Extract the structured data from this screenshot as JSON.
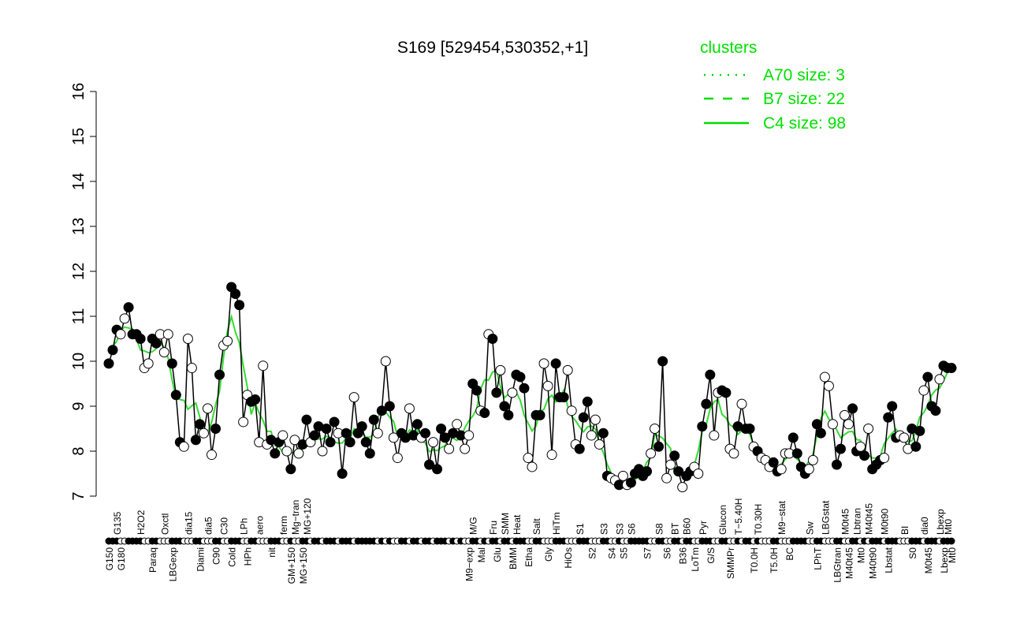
{
  "chart_data": {
    "type": "line",
    "title": "S169 [529454,530352,+1]",
    "xlabel": "",
    "ylabel": "",
    "ylim": [
      7,
      16
    ],
    "yticks": [
      7,
      8,
      9,
      10,
      11,
      12,
      13,
      14,
      15,
      16
    ],
    "legend": {
      "title": "clusters",
      "placement": "top-right",
      "color": "#00dd00",
      "entries": [
        {
          "label": "A70 size: 3",
          "style": "dotted"
        },
        {
          "label": "B7 size: 22",
          "style": "dashed"
        },
        {
          "label": "C4 size: 98",
          "style": "solid"
        }
      ]
    },
    "points": [
      [
        "G150",
        9.95,
        1
      ],
      [
        "",
        10.25,
        1
      ],
      [
        "G135",
        10.7,
        1
      ],
      [
        "G180",
        10.6,
        0
      ],
      [
        "",
        10.95,
        0
      ],
      [
        "",
        11.2,
        1
      ],
      [
        "",
        10.6,
        1
      ],
      [
        "",
        10.6,
        1
      ],
      [
        "H2O2",
        10.5,
        1
      ],
      [
        "",
        9.85,
        0
      ],
      [
        "",
        9.95,
        0
      ],
      [
        "Paraq",
        10.5,
        1
      ],
      [
        "",
        10.4,
        1
      ],
      [
        "",
        10.6,
        0
      ],
      [
        "Oxctl",
        10.2,
        0
      ],
      [
        "",
        10.6,
        0
      ],
      [
        "LBGexp",
        9.95,
        1
      ],
      [
        "",
        9.25,
        1
      ],
      [
        "",
        8.2,
        1
      ],
      [
        "",
        8.1,
        0
      ],
      [
        "dia15",
        10.5,
        0
      ],
      [
        "",
        9.85,
        0
      ],
      [
        "",
        8.25,
        1
      ],
      [
        "Diami",
        8.6,
        1
      ],
      [
        "",
        8.4,
        0
      ],
      [
        "dia5",
        8.95,
        0
      ],
      [
        "",
        7.92,
        0
      ],
      [
        "C90",
        8.5,
        1
      ],
      [
        "",
        9.7,
        1
      ],
      [
        "C30",
        10.35,
        0
      ],
      [
        "",
        10.45,
        0
      ],
      [
        "Cold",
        11.65,
        1
      ],
      [
        "",
        11.5,
        1
      ],
      [
        "",
        11.25,
        1
      ],
      [
        "LPh",
        8.65,
        0
      ],
      [
        "HPh",
        9.25,
        0
      ],
      [
        "",
        9.1,
        1
      ],
      [
        "",
        9.15,
        1
      ],
      [
        "aero",
        8.2,
        0
      ],
      [
        "",
        9.9,
        0
      ],
      [
        "",
        8.15,
        0
      ],
      [
        "nit",
        8.25,
        1
      ],
      [
        "",
        7.95,
        1
      ],
      [
        "",
        8.2,
        1
      ],
      [
        "ferm",
        8.35,
        0
      ],
      [
        "",
        8.0,
        0
      ],
      [
        "GM+150",
        7.6,
        1
      ],
      [
        "Mg−tran",
        8.25,
        0
      ],
      [
        "",
        7.95,
        0
      ],
      [
        "MG+150",
        8.15,
        1
      ],
      [
        "MG+120",
        8.7,
        1
      ],
      [
        "",
        8.2,
        0
      ],
      [
        "",
        8.35,
        1
      ],
      [
        "",
        8.55,
        1
      ],
      [
        "",
        8.0,
        0
      ],
      [
        "",
        8.5,
        1
      ],
      [
        "",
        8.2,
        1
      ],
      [
        "",
        8.65,
        1
      ],
      [
        "",
        8.4,
        0
      ],
      [
        "",
        7.5,
        1
      ],
      [
        "",
        8.4,
        1
      ],
      [
        "",
        8.2,
        1
      ],
      [
        "",
        9.2,
        0
      ],
      [
        "",
        8.4,
        1
      ],
      [
        "",
        8.55,
        1
      ],
      [
        "",
        8.2,
        1
      ],
      [
        "",
        7.95,
        1
      ],
      [
        "",
        8.7,
        1
      ],
      [
        "",
        8.4,
        0
      ],
      [
        "",
        8.9,
        1
      ],
      [
        "",
        10.0,
        0
      ],
      [
        "",
        9.0,
        1
      ],
      [
        "",
        8.3,
        0
      ],
      [
        "",
        7.85,
        0
      ],
      [
        "",
        8.4,
        1
      ],
      [
        "",
        8.3,
        1
      ],
      [
        "",
        8.95,
        0
      ],
      [
        "",
        8.35,
        1
      ],
      [
        "",
        8.6,
        1
      ],
      [
        "",
        8.3,
        0
      ],
      [
        "",
        8.4,
        1
      ],
      [
        "",
        7.7,
        1
      ],
      [
        "",
        8.2,
        0
      ],
      [
        "",
        7.6,
        1
      ],
      [
        "",
        8.5,
        1
      ],
      [
        "",
        8.3,
        1
      ],
      [
        "",
        8.05,
        0
      ],
      [
        "",
        8.4,
        1
      ],
      [
        "",
        8.6,
        0
      ],
      [
        "",
        8.35,
        1
      ],
      [
        "",
        8.05,
        0
      ],
      [
        "M9−exp",
        8.35,
        0
      ],
      [
        "M/G",
        9.5,
        1
      ],
      [
        "",
        9.35,
        1
      ],
      [
        "Mal",
        8.9,
        0
      ],
      [
        "",
        8.85,
        1
      ],
      [
        "",
        10.6,
        0
      ],
      [
        "Fru",
        10.5,
        1
      ],
      [
        "Glu",
        9.3,
        1
      ],
      [
        "",
        9.8,
        0
      ],
      [
        "SMM",
        9.0,
        1
      ],
      [
        "",
        8.8,
        1
      ],
      [
        "BMM",
        9.3,
        0
      ],
      [
        "Heat",
        9.7,
        1
      ],
      [
        "",
        9.65,
        1
      ],
      [
        "",
        9.4,
        1
      ],
      [
        "Etha",
        7.85,
        0
      ],
      [
        "",
        7.65,
        0
      ],
      [
        "Salt",
        8.8,
        1
      ],
      [
        "",
        8.8,
        1
      ],
      [
        "",
        9.95,
        0
      ],
      [
        "Gly",
        9.45,
        0
      ],
      [
        "",
        7.92,
        0
      ],
      [
        "HiTm",
        9.95,
        1
      ],
      [
        "",
        9.2,
        1
      ],
      [
        "",
        9.2,
        1
      ],
      [
        "HiOs",
        9.8,
        0
      ],
      [
        "",
        8.9,
        0
      ],
      [
        "",
        8.15,
        0
      ],
      [
        "S1",
        8.05,
        1
      ],
      [
        "",
        8.75,
        1
      ],
      [
        "",
        9.1,
        1
      ],
      [
        "S2",
        8.35,
        0
      ],
      [
        "",
        8.7,
        0
      ],
      [
        "",
        8.15,
        0
      ],
      [
        "S3",
        8.4,
        1
      ],
      [
        "",
        7.45,
        1
      ],
      [
        "S4",
        7.4,
        0
      ],
      [
        "",
        7.35,
        0
      ],
      [
        "S3",
        7.25,
        1
      ],
      [
        "S5",
        7.45,
        0
      ],
      [
        "",
        7.25,
        0
      ],
      [
        "S6",
        7.3,
        1
      ],
      [
        "",
        7.5,
        1
      ],
      [
        "",
        7.6,
        1
      ],
      [
        "",
        7.45,
        1
      ],
      [
        "S7",
        7.55,
        1
      ],
      [
        "",
        7.95,
        0
      ],
      [
        "",
        8.5,
        0
      ],
      [
        "S8",
        8.1,
        1
      ],
      [
        "",
        10.0,
        1
      ],
      [
        "S6",
        7.4,
        0
      ],
      [
        "",
        7.7,
        0
      ],
      [
        "BT",
        7.9,
        1
      ],
      [
        "",
        7.55,
        1
      ],
      [
        "B36",
        7.2,
        0
      ],
      [
        "B60",
        7.45,
        1
      ],
      [
        "",
        7.55,
        1
      ],
      [
        "LoTm",
        7.65,
        0
      ],
      [
        "",
        7.5,
        0
      ],
      [
        "Pyr",
        8.55,
        1
      ],
      [
        "",
        9.05,
        1
      ],
      [
        "G/S",
        9.7,
        1
      ],
      [
        "",
        8.35,
        0
      ],
      [
        "",
        9.3,
        0
      ],
      [
        "Glucon",
        9.35,
        1
      ],
      [
        "",
        9.3,
        1
      ],
      [
        "SMMPr",
        8.05,
        0
      ],
      [
        "",
        7.95,
        0
      ],
      [
        "T−5.40H",
        8.55,
        1
      ],
      [
        "",
        9.05,
        0
      ],
      [
        "",
        8.5,
        1
      ],
      [
        "",
        8.5,
        1
      ],
      [
        "T0.0H",
        8.1,
        0
      ],
      [
        "T0.30H",
        8.0,
        1
      ],
      [
        "",
        7.85,
        0
      ],
      [
        "",
        7.8,
        0
      ],
      [
        "",
        7.65,
        0
      ],
      [
        "T5.0H",
        7.75,
        1
      ],
      [
        "",
        7.55,
        1
      ],
      [
        "M9−stat",
        7.6,
        0
      ],
      [
        "",
        7.95,
        0
      ],
      [
        "BC",
        7.95,
        0
      ],
      [
        "",
        8.3,
        1
      ],
      [
        "",
        7.95,
        1
      ],
      [
        "",
        7.65,
        1
      ],
      [
        "",
        7.5,
        1
      ],
      [
        "Sw",
        7.6,
        0
      ],
      [
        "",
        7.8,
        0
      ],
      [
        "LPhT",
        8.6,
        1
      ],
      [
        "",
        8.4,
        1
      ],
      [
        "LBGstat",
        9.65,
        0
      ],
      [
        "",
        9.45,
        0
      ],
      [
        "",
        8.6,
        0
      ],
      [
        "LBGtran",
        7.7,
        1
      ],
      [
        "",
        8.05,
        1
      ],
      [
        "M0t45",
        8.8,
        0
      ],
      [
        "M40t45",
        8.6,
        0
      ],
      [
        "",
        8.95,
        1
      ],
      [
        "Lbtran",
        8.0,
        1
      ],
      [
        "Mt0",
        8.1,
        0
      ],
      [
        "",
        7.9,
        1
      ],
      [
        "M40t45",
        8.5,
        0
      ],
      [
        "M40t90",
        7.6,
        1
      ],
      [
        "",
        7.7,
        1
      ],
      [
        "",
        7.8,
        1
      ],
      [
        "M0t90",
        7.85,
        0
      ],
      [
        "Lbstat",
        8.75,
        1
      ],
      [
        "",
        9.0,
        1
      ],
      [
        "",
        8.3,
        1
      ],
      [
        "",
        8.35,
        0
      ],
      [
        "BI",
        8.3,
        0
      ],
      [
        "",
        8.05,
        0
      ],
      [
        "S0",
        8.5,
        1
      ],
      [
        "",
        8.1,
        1
      ],
      [
        "",
        8.45,
        1
      ],
      [
        "dia0",
        9.35,
        0
      ],
      [
        "M0t45",
        9.65,
        1
      ],
      [
        "",
        9.0,
        1
      ],
      [
        "",
        8.9,
        1
      ],
      [
        "Lbexp",
        9.6,
        0
      ],
      [
        "Lbexp",
        9.9,
        1
      ],
      [
        "Mt0",
        9.85,
        1
      ],
      [
        "Mt0",
        9.85,
        1
      ]
    ]
  }
}
